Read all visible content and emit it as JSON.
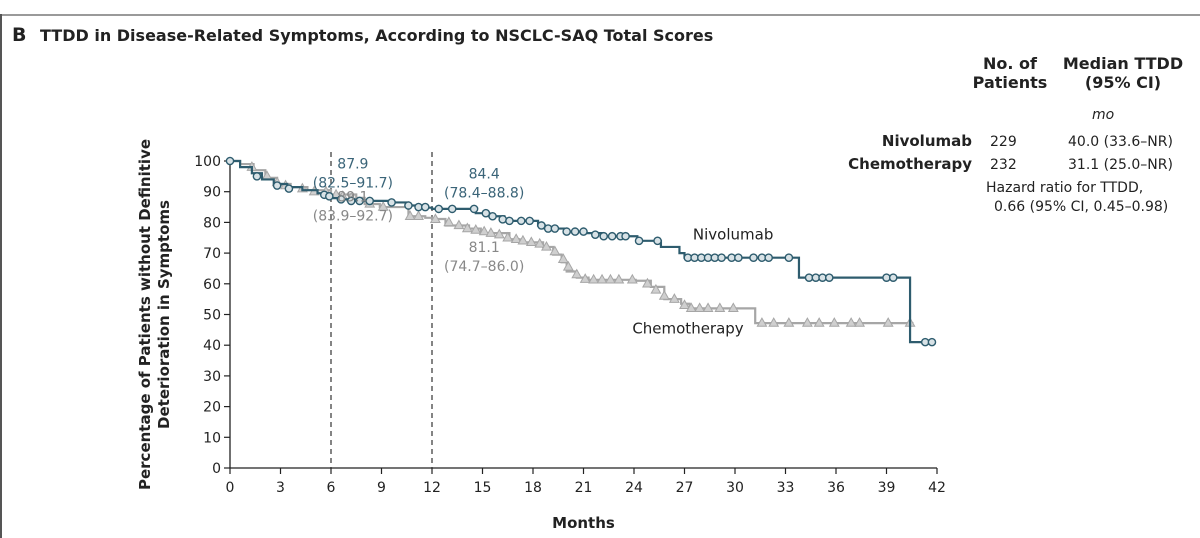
{
  "panel": {
    "letter": "B",
    "title": "TTDD in Disease-Related Symptoms, According to NSCLC-SAQ Total Scores"
  },
  "table": {
    "col_patients": [
      "No. of",
      "Patients"
    ],
    "col_median": [
      "Median TTDD",
      "(95% CI)"
    ],
    "unit": "mo",
    "rows": [
      {
        "name": "Nivolumab",
        "patients": "229",
        "median": "40.0 (33.6–NR)"
      },
      {
        "name": "Chemotherapy",
        "patients": "232",
        "median": "31.1 (25.0–NR)"
      }
    ],
    "hazard": [
      "Hazard ratio for TTDD,",
      "0.66 (95% CI, 0.45–0.98)"
    ]
  },
  "colors": {
    "nivolumab": "#2e5c6e",
    "chemotherapy": "#a6a6a6",
    "nivo_label": "#3a6478",
    "chemo_label": "#888888"
  },
  "chart_data": {
    "type": "line",
    "title": "TTDD in Disease-Related Symptoms, According to NSCLC-SAQ Total Scores",
    "xlabel": "Months",
    "ylabel": [
      "Percentage of Patients without Definitive",
      "Deterioration in Symptoms"
    ],
    "xlim": [
      0,
      42
    ],
    "ylim": [
      0,
      100
    ],
    "xticks": [
      0,
      3,
      6,
      9,
      12,
      15,
      18,
      21,
      24,
      27,
      30,
      33,
      36,
      39,
      42
    ],
    "yticks": [
      0,
      10,
      20,
      30,
      40,
      50,
      60,
      70,
      80,
      90,
      100
    ],
    "reference_lines_x": [
      6,
      12
    ],
    "series": [
      {
        "name": "Nivolumab",
        "marker": "circle",
        "steps": [
          [
            0,
            100
          ],
          [
            0.6,
            98
          ],
          [
            1.3,
            96
          ],
          [
            1.9,
            94
          ],
          [
            2.6,
            92.5
          ],
          [
            3.4,
            91.5
          ],
          [
            4.3,
            90.5
          ],
          [
            5.2,
            89.5
          ],
          [
            5.8,
            88.5
          ],
          [
            6,
            87.9
          ],
          [
            6.4,
            87.5
          ],
          [
            7.4,
            87
          ],
          [
            9.5,
            86.5
          ],
          [
            10.6,
            85.5
          ],
          [
            11.4,
            84.8
          ],
          [
            12,
            84.4
          ],
          [
            14.6,
            83
          ],
          [
            15.4,
            82
          ],
          [
            16.3,
            80.5
          ],
          [
            18.3,
            79
          ],
          [
            18.7,
            78
          ],
          [
            19.9,
            77
          ],
          [
            21.1,
            76.5
          ],
          [
            22.1,
            75.5
          ],
          [
            24.2,
            74
          ],
          [
            25.6,
            72
          ],
          [
            26.7,
            70
          ],
          [
            27,
            68.5
          ],
          [
            33.8,
            62
          ],
          [
            40.4,
            41
          ],
          [
            41.7,
            41
          ]
        ],
        "censor": [
          [
            0,
            100
          ],
          [
            1.6,
            95
          ],
          [
            2.8,
            92
          ],
          [
            3.5,
            91
          ],
          [
            5.6,
            89
          ],
          [
            5.9,
            88.5
          ],
          [
            6.6,
            87.5
          ],
          [
            7.2,
            87
          ],
          [
            7.7,
            87
          ],
          [
            8.3,
            87
          ],
          [
            9.6,
            86.5
          ],
          [
            10.6,
            85.5
          ],
          [
            11.2,
            85
          ],
          [
            11.6,
            85
          ],
          [
            12.4,
            84.4
          ],
          [
            13.2,
            84.4
          ],
          [
            14.5,
            84.4
          ],
          [
            15.2,
            83
          ],
          [
            15.6,
            82
          ],
          [
            16.2,
            81
          ],
          [
            16.6,
            80.5
          ],
          [
            17.3,
            80.5
          ],
          [
            17.8,
            80.5
          ],
          [
            18.5,
            79
          ],
          [
            18.9,
            78
          ],
          [
            19.3,
            78
          ],
          [
            20,
            77
          ],
          [
            20.5,
            77
          ],
          [
            21,
            77
          ],
          [
            21.7,
            76
          ],
          [
            22.2,
            75.5
          ],
          [
            22.7,
            75.5
          ],
          [
            23.2,
            75.5
          ],
          [
            23.5,
            75.5
          ],
          [
            24.3,
            74
          ],
          [
            25.4,
            74
          ],
          [
            27.2,
            68.5
          ],
          [
            27.6,
            68.5
          ],
          [
            28,
            68.5
          ],
          [
            28.4,
            68.5
          ],
          [
            28.8,
            68.5
          ],
          [
            29.2,
            68.5
          ],
          [
            29.8,
            68.5
          ],
          [
            30.2,
            68.5
          ],
          [
            31.1,
            68.5
          ],
          [
            31.6,
            68.5
          ],
          [
            32,
            68.5
          ],
          [
            33.2,
            68.5
          ],
          [
            34.4,
            62
          ],
          [
            34.8,
            62
          ],
          [
            35.2,
            62
          ],
          [
            35.6,
            62
          ],
          [
            39,
            62
          ],
          [
            39.4,
            62
          ],
          [
            41.3,
            41
          ],
          [
            41.7,
            41
          ]
        ]
      },
      {
        "name": "Chemotherapy",
        "marker": "triangle",
        "steps": [
          [
            0,
            100
          ],
          [
            0.6,
            99
          ],
          [
            1.4,
            97
          ],
          [
            2.1,
            94.5
          ],
          [
            2.8,
            92.5
          ],
          [
            3.6,
            91.5
          ],
          [
            4.6,
            90.5
          ],
          [
            6,
            89.1
          ],
          [
            7.5,
            88
          ],
          [
            8,
            86
          ],
          [
            8.9,
            85
          ],
          [
            10.6,
            82
          ],
          [
            11.6,
            81.5
          ],
          [
            12,
            81.1
          ],
          [
            12.8,
            79
          ],
          [
            14.2,
            78
          ],
          [
            14.9,
            76.5
          ],
          [
            16.6,
            74.5
          ],
          [
            17.2,
            73.5
          ],
          [
            18.6,
            72
          ],
          [
            19.2,
            69.5
          ],
          [
            19.7,
            67
          ],
          [
            20,
            64
          ],
          [
            20.6,
            62
          ],
          [
            21.3,
            61.3
          ],
          [
            24.1,
            61
          ],
          [
            25,
            59
          ],
          [
            25.8,
            55
          ],
          [
            26.8,
            53.5
          ],
          [
            27.3,
            52
          ],
          [
            31.2,
            47.2
          ],
          [
            40.6,
            47.2
          ]
        ],
        "censor": [
          [
            1.3,
            98
          ],
          [
            2.2,
            95
          ],
          [
            2.8,
            93
          ],
          [
            3.3,
            92
          ],
          [
            4.3,
            91
          ],
          [
            5,
            90
          ],
          [
            5.7,
            90
          ],
          [
            6.3,
            89
          ],
          [
            6.7,
            88.5
          ],
          [
            7.2,
            88
          ],
          [
            8.3,
            86
          ],
          [
            9.1,
            85
          ],
          [
            10.7,
            82
          ],
          [
            11.2,
            82
          ],
          [
            12.2,
            81
          ],
          [
            13,
            80
          ],
          [
            13.6,
            79
          ],
          [
            14.1,
            78
          ],
          [
            14.6,
            77.5
          ],
          [
            15.1,
            77
          ],
          [
            15.5,
            76.5
          ],
          [
            16,
            76
          ],
          [
            16.5,
            75
          ],
          [
            17,
            74.5
          ],
          [
            17.4,
            74
          ],
          [
            17.9,
            73.5
          ],
          [
            18.4,
            73
          ],
          [
            18.8,
            72
          ],
          [
            19.3,
            70.5
          ],
          [
            19.8,
            68
          ],
          [
            20.1,
            65.5
          ],
          [
            20.6,
            63
          ],
          [
            21.1,
            61.5
          ],
          [
            21.6,
            61.3
          ],
          [
            22.1,
            61.3
          ],
          [
            22.6,
            61.3
          ],
          [
            23.1,
            61.3
          ],
          [
            23.9,
            61.3
          ],
          [
            24.8,
            60
          ],
          [
            25.3,
            58
          ],
          [
            25.8,
            56
          ],
          [
            26.4,
            55
          ],
          [
            27,
            53
          ],
          [
            27.4,
            52
          ],
          [
            27.9,
            52
          ],
          [
            28.4,
            52
          ],
          [
            29.1,
            52
          ],
          [
            29.9,
            52
          ],
          [
            31.6,
            47.2
          ],
          [
            32.3,
            47.2
          ],
          [
            33.2,
            47.2
          ],
          [
            34.3,
            47.2
          ],
          [
            35,
            47.2
          ],
          [
            35.9,
            47.2
          ],
          [
            36.9,
            47.2
          ],
          [
            37.4,
            47.2
          ],
          [
            39.1,
            47.2
          ],
          [
            40.4,
            47.2
          ]
        ]
      }
    ],
    "annotations": [
      {
        "series": "Nivolumab",
        "lines": [
          "87.9",
          "(82.5–91.7)"
        ]
      },
      {
        "series": "Nivolumab",
        "lines": [
          "84.4",
          "(78.4–88.8)"
        ]
      },
      {
        "series": "Chemotherapy",
        "lines": [
          "89.1",
          "(83.9–92.7)"
        ]
      },
      {
        "series": "Chemotherapy",
        "lines": [
          "81.1",
          "(74.7–86.0)"
        ]
      }
    ],
    "series_labels": [
      "Nivolumab",
      "Chemotherapy"
    ]
  }
}
